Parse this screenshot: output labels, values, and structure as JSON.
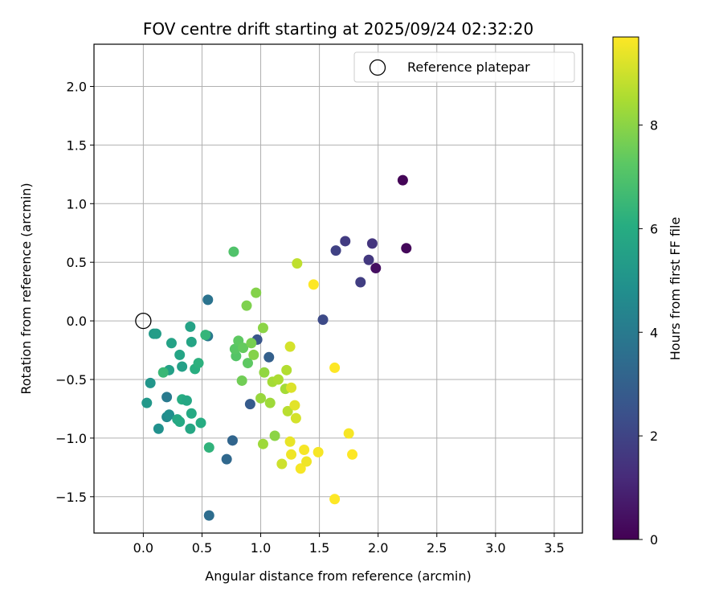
{
  "chart_data": {
    "type": "scatter",
    "title": "FOV centre drift starting at 2025/09/24 02:32:20",
    "xlabel": "Angular distance from reference (arcmin)",
    "ylabel": "Rotation from reference (arcmin)",
    "xlim": [
      -0.42,
      3.74
    ],
    "ylim": [
      -1.81,
      2.36
    ],
    "xticks": [
      0.0,
      0.5,
      1.0,
      1.5,
      2.0,
      2.5,
      3.0,
      3.5
    ],
    "yticks": [
      -1.5,
      -1.0,
      -0.5,
      0.0,
      0.5,
      1.0,
      1.5,
      2.0
    ],
    "xtick_labels": [
      "0.0",
      "0.5",
      "1.0",
      "1.5",
      "2.0",
      "2.5",
      "3.0",
      "3.5"
    ],
    "ytick_labels": [
      "−1.5",
      "−1.0",
      "−0.5",
      "0.0",
      "0.5",
      "1.0",
      "1.5",
      "2.0"
    ],
    "grid": true,
    "legend": {
      "position": "top-right",
      "entries": [
        "Reference platepar"
      ]
    },
    "reference_point": {
      "x": 0.0,
      "y": 0.0,
      "label": "Reference platepar"
    },
    "colorbar": {
      "label": "Hours from first FF file",
      "colormap": "viridis",
      "range": [
        0,
        9.7
      ],
      "ticks": [
        0,
        2,
        4,
        6,
        8
      ],
      "tick_labels": [
        "0",
        "2",
        "4",
        "6",
        "8"
      ]
    },
    "points": [
      {
        "x": 2.21,
        "y": 1.2,
        "t": 0.1
      },
      {
        "x": 2.24,
        "y": 0.62,
        "t": 0.2
      },
      {
        "x": 1.98,
        "y": 0.45,
        "t": 0.4
      },
      {
        "x": 1.95,
        "y": 0.66,
        "t": 1.5
      },
      {
        "x": 1.92,
        "y": 0.52,
        "t": 1.6
      },
      {
        "x": 1.85,
        "y": 0.33,
        "t": 1.8
      },
      {
        "x": 1.72,
        "y": 0.68,
        "t": 1.7
      },
      {
        "x": 1.64,
        "y": 0.6,
        "t": 1.9
      },
      {
        "x": 1.53,
        "y": 0.01,
        "t": 2.2
      },
      {
        "x": 0.97,
        "y": -0.16,
        "t": 2.6
      },
      {
        "x": 0.91,
        "y": -0.71,
        "t": 2.8
      },
      {
        "x": 1.07,
        "y": -0.31,
        "t": 3.0
      },
      {
        "x": 0.76,
        "y": -1.02,
        "t": 3.2
      },
      {
        "x": 0.71,
        "y": -1.18,
        "t": 3.3
      },
      {
        "x": 0.56,
        "y": -1.66,
        "t": 3.5
      },
      {
        "x": 0.55,
        "y": 0.18,
        "t": 3.7
      },
      {
        "x": 0.55,
        "y": -0.13,
        "t": 3.9
      },
      {
        "x": 0.2,
        "y": -0.65,
        "t": 4.0
      },
      {
        "x": 0.2,
        "y": -0.82,
        "t": 4.6
      },
      {
        "x": 0.22,
        "y": -0.8,
        "t": 4.8
      },
      {
        "x": 0.13,
        "y": -0.92,
        "t": 4.9
      },
      {
        "x": 0.06,
        "y": -0.53,
        "t": 5.1
      },
      {
        "x": 0.03,
        "y": -0.7,
        "t": 5.2
      },
      {
        "x": 0.09,
        "y": -0.11,
        "t": 5.3
      },
      {
        "x": 0.11,
        "y": -0.11,
        "t": 5.4
      },
      {
        "x": 0.22,
        "y": -0.42,
        "t": 5.5
      },
      {
        "x": 0.24,
        "y": -0.19,
        "t": 5.6
      },
      {
        "x": 0.31,
        "y": -0.29,
        "t": 5.7
      },
      {
        "x": 0.33,
        "y": -0.39,
        "t": 5.5
      },
      {
        "x": 0.29,
        "y": -0.84,
        "t": 5.8
      },
      {
        "x": 0.31,
        "y": -0.86,
        "t": 5.9
      },
      {
        "x": 0.33,
        "y": -0.67,
        "t": 6.0
      },
      {
        "x": 0.37,
        "y": -0.68,
        "t": 5.8
      },
      {
        "x": 0.4,
        "y": -0.05,
        "t": 5.6
      },
      {
        "x": 0.41,
        "y": -0.18,
        "t": 5.7
      },
      {
        "x": 0.41,
        "y": -0.79,
        "t": 5.9
      },
      {
        "x": 0.4,
        "y": -0.92,
        "t": 5.8
      },
      {
        "x": 0.44,
        "y": -0.41,
        "t": 6.1
      },
      {
        "x": 0.47,
        "y": -0.36,
        "t": 6.2
      },
      {
        "x": 0.49,
        "y": -0.87,
        "t": 6.0
      },
      {
        "x": 0.56,
        "y": -1.08,
        "t": 6.3
      },
      {
        "x": 0.53,
        "y": -0.12,
        "t": 6.4
      },
      {
        "x": 0.17,
        "y": -0.44,
        "t": 6.5
      },
      {
        "x": 0.77,
        "y": 0.59,
        "t": 7.0
      },
      {
        "x": 0.79,
        "y": -0.3,
        "t": 7.1
      },
      {
        "x": 0.78,
        "y": -0.24,
        "t": 7.2
      },
      {
        "x": 0.81,
        "y": -0.17,
        "t": 7.3
      },
      {
        "x": 0.85,
        "y": -0.23,
        "t": 7.4
      },
      {
        "x": 0.89,
        "y": -0.36,
        "t": 7.3
      },
      {
        "x": 0.84,
        "y": -0.51,
        "t": 7.6
      },
      {
        "x": 0.92,
        "y": -0.19,
        "t": 7.7
      },
      {
        "x": 0.88,
        "y": 0.13,
        "t": 7.8
      },
      {
        "x": 0.96,
        "y": 0.24,
        "t": 7.9
      },
      {
        "x": 0.94,
        "y": -0.29,
        "t": 7.9
      },
      {
        "x": 1.02,
        "y": -0.06,
        "t": 8.0
      },
      {
        "x": 1.03,
        "y": -0.44,
        "t": 8.1
      },
      {
        "x": 1.0,
        "y": -0.66,
        "t": 8.2
      },
      {
        "x": 1.02,
        "y": -1.05,
        "t": 8.3
      },
      {
        "x": 1.08,
        "y": -0.7,
        "t": 8.3
      },
      {
        "x": 1.1,
        "y": -0.52,
        "t": 8.4
      },
      {
        "x": 1.12,
        "y": -0.98,
        "t": 8.0
      },
      {
        "x": 1.15,
        "y": -0.5,
        "t": 8.5
      },
      {
        "x": 1.21,
        "y": -0.58,
        "t": 8.4
      },
      {
        "x": 1.22,
        "y": -0.42,
        "t": 8.6
      },
      {
        "x": 1.23,
        "y": -0.77,
        "t": 8.7
      },
      {
        "x": 1.31,
        "y": 0.49,
        "t": 8.8
      },
      {
        "x": 1.18,
        "y": -1.22,
        "t": 9.0
      },
      {
        "x": 1.25,
        "y": -0.22,
        "t": 9.1
      },
      {
        "x": 1.26,
        "y": -0.57,
        "t": 9.2
      },
      {
        "x": 1.29,
        "y": -0.72,
        "t": 9.3
      },
      {
        "x": 1.3,
        "y": -0.83,
        "t": 9.1
      },
      {
        "x": 1.25,
        "y": -1.03,
        "t": 9.4
      },
      {
        "x": 1.26,
        "y": -1.14,
        "t": 9.5
      },
      {
        "x": 1.34,
        "y": -1.26,
        "t": 9.6
      },
      {
        "x": 1.37,
        "y": -1.1,
        "t": 9.6
      },
      {
        "x": 1.39,
        "y": -1.2,
        "t": 9.5
      },
      {
        "x": 1.45,
        "y": 0.31,
        "t": 9.7
      },
      {
        "x": 1.49,
        "y": -1.12,
        "t": 9.6
      },
      {
        "x": 1.63,
        "y": -0.4,
        "t": 9.7
      },
      {
        "x": 1.63,
        "y": -1.52,
        "t": 9.7
      },
      {
        "x": 1.75,
        "y": -0.96,
        "t": 9.6
      },
      {
        "x": 1.78,
        "y": -1.14,
        "t": 9.7
      }
    ]
  }
}
